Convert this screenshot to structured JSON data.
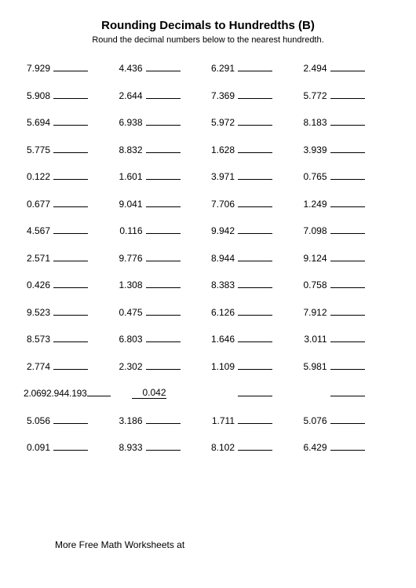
{
  "title": "Rounding Decimals to Hundredths (B)",
  "subtitle": "Round the decimal numbers below to the nearest hundredth.",
  "footer": "More Free Math Worksheets at",
  "rows": [
    [
      "7.929",
      "4.436",
      "6.291",
      "2.494"
    ],
    [
      "5.908",
      "2.644",
      "7.369",
      "5.772"
    ],
    [
      "5.694",
      "6.938",
      "5.972",
      "8.183"
    ],
    [
      "5.775",
      "8.832",
      "1.628",
      "3.939"
    ],
    [
      "0.122",
      "1.601",
      "3.971",
      "0.765"
    ],
    [
      "0.677",
      "9.041",
      "7.706",
      "1.249"
    ],
    [
      "4.567",
      "0.116",
      "9.942",
      "7.098"
    ],
    [
      "2.571",
      "9.776",
      "8.944",
      "9.124"
    ],
    [
      "0.426",
      "1.308",
      "8.383",
      "0.758"
    ],
    [
      "9.523",
      "0.475",
      "6.126",
      "7.912"
    ],
    [
      "8.573",
      "6.803",
      "1.646",
      "3.011"
    ],
    [
      "2.774",
      "2.302",
      "1.109",
      "5.981"
    ],
    [
      "2.0692.944.193",
      "0.042",
      "",
      ""
    ],
    [
      "5.056",
      "3.186",
      "1.711",
      "5.076"
    ],
    [
      "0.091",
      "8.933",
      "8.102",
      "6.429"
    ]
  ]
}
